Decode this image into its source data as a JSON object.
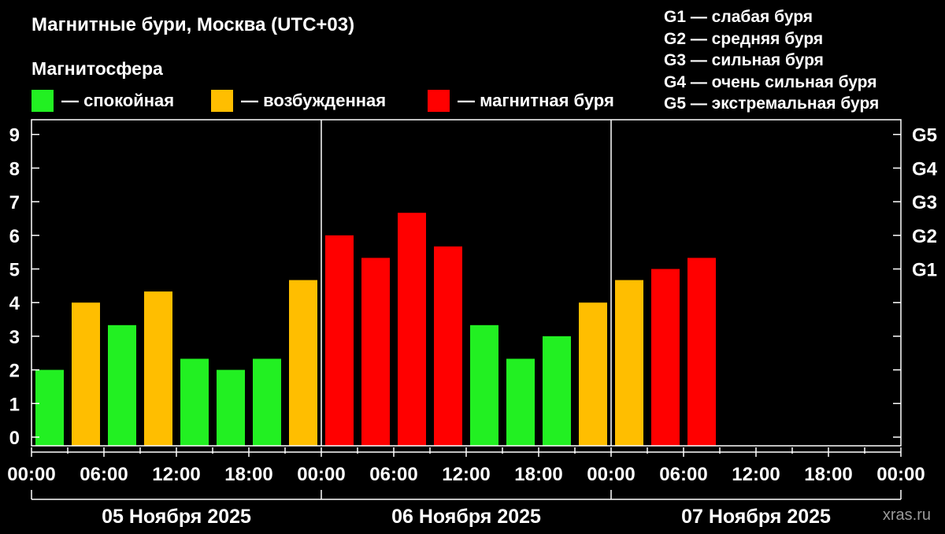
{
  "title": "Магнитные бури, Москва (UTC+03)",
  "legend": {
    "heading": "Магнитосфера",
    "items": [
      {
        "label": "— спокойная",
        "color": "#22f022"
      },
      {
        "label": "— возбужденная",
        "color": "#ffbe00"
      },
      {
        "label": "— магнитная буря",
        "color": "#ff0000"
      }
    ]
  },
  "g_scale": [
    "G1 — слабая буря",
    "G2 — средняя буря",
    "G3 — сильная буря",
    "G4 — очень сильная буря",
    "G5 — экстремальная буря"
  ],
  "watermark": "xras.ru",
  "chart_data": {
    "type": "bar",
    "title": "Магнитные бури, Москва (UTC+03)",
    "xlabel": "",
    "ylabel": "",
    "ylim": [
      0,
      9
    ],
    "y_ticks": [
      "0",
      "1",
      "2",
      "3",
      "4",
      "5",
      "6",
      "7",
      "8",
      "9"
    ],
    "right_axis_labels": [
      {
        "value": 5,
        "label": "G1"
      },
      {
        "value": 6,
        "label": "G2"
      },
      {
        "value": 7,
        "label": "G3"
      },
      {
        "value": 8,
        "label": "G4"
      },
      {
        "value": 9,
        "label": "G5"
      }
    ],
    "x_range_hours": [
      0,
      72
    ],
    "x_ticks": [
      "00:00",
      "06:00",
      "12:00",
      "18:00",
      "00:00",
      "06:00",
      "12:00",
      "18:00",
      "00:00",
      "06:00",
      "12:00",
      "18:00",
      "00:00"
    ],
    "days": [
      "05 Ноября 2025",
      "06 Ноября 2025",
      "07 Ноября 2025"
    ],
    "grid": false,
    "colors": {
      "quiet": "#22f022",
      "active": "#ffbe00",
      "storm": "#ff0000"
    },
    "bars": [
      {
        "value": 2.0,
        "level": "quiet"
      },
      {
        "value": 4.0,
        "level": "active"
      },
      {
        "value": 3.33,
        "level": "quiet"
      },
      {
        "value": 4.33,
        "level": "active"
      },
      {
        "value": 2.33,
        "level": "quiet"
      },
      {
        "value": 2.0,
        "level": "quiet"
      },
      {
        "value": 2.33,
        "level": "quiet"
      },
      {
        "value": 4.67,
        "level": "active"
      },
      {
        "value": 6.0,
        "level": "storm"
      },
      {
        "value": 5.33,
        "level": "storm"
      },
      {
        "value": 6.67,
        "level": "storm"
      },
      {
        "value": 5.67,
        "level": "storm"
      },
      {
        "value": 3.33,
        "level": "quiet"
      },
      {
        "value": 2.33,
        "level": "quiet"
      },
      {
        "value": 3.0,
        "level": "quiet"
      },
      {
        "value": 4.0,
        "level": "active"
      },
      {
        "value": 4.67,
        "level": "active"
      },
      {
        "value": 5.0,
        "level": "storm"
      },
      {
        "value": 5.33,
        "level": "storm"
      }
    ]
  }
}
